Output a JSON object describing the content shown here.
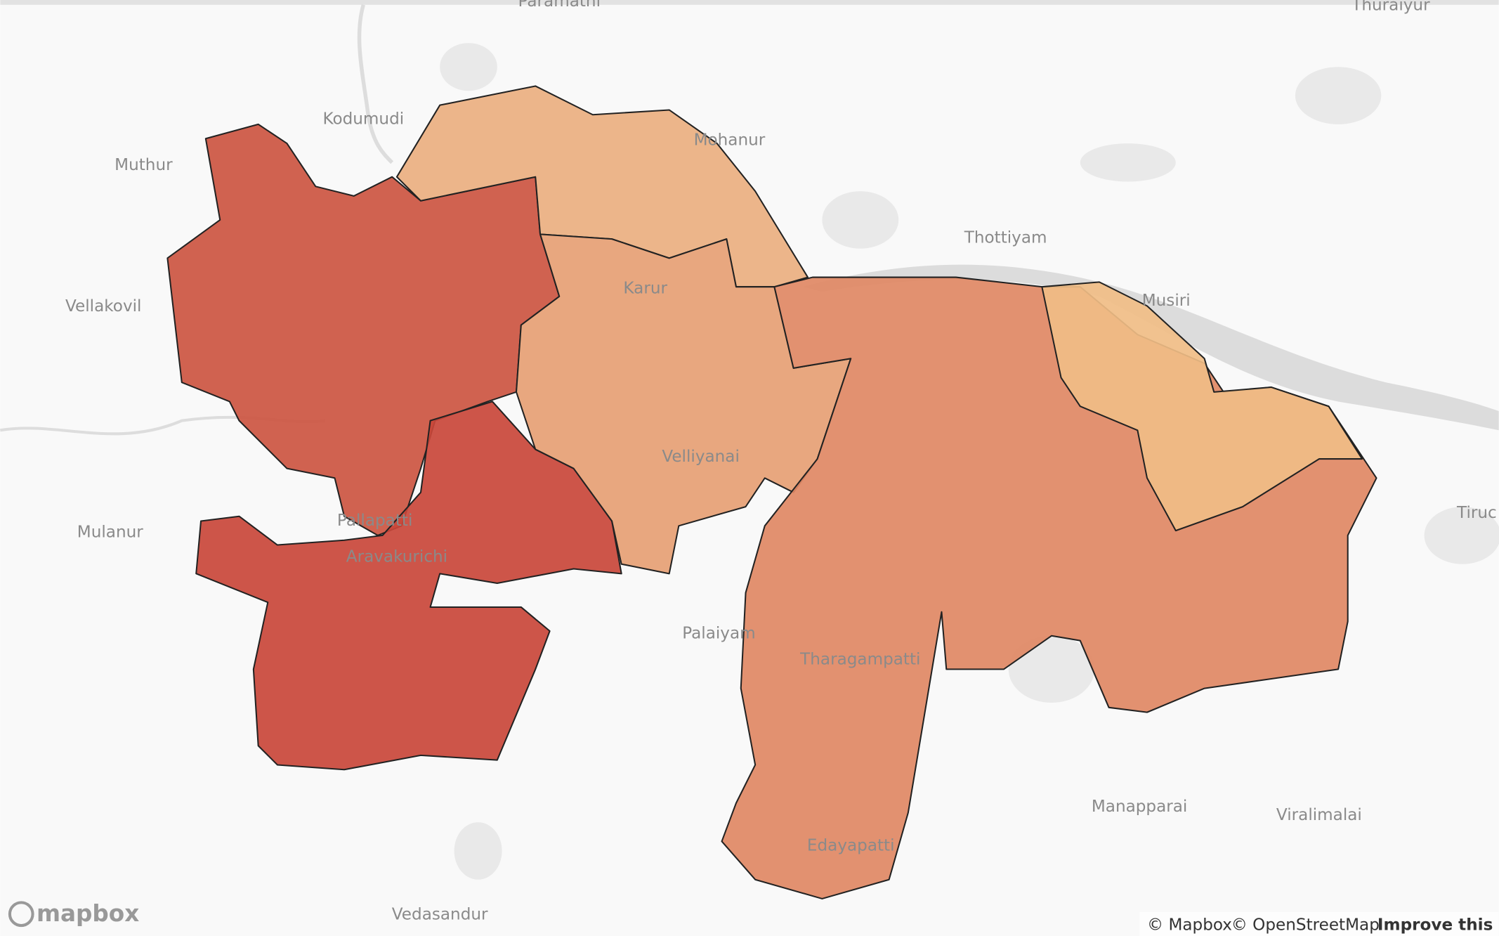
{
  "map": {
    "places": [
      "Paramathi",
      "Thuraiyur",
      "Kodumudi",
      "Muthur",
      "Mohanur",
      "Thottiyam",
      "Vellakovil",
      "Karur",
      "Musiri",
      "Velliyanai",
      "Mulanur",
      "Pallapatti",
      "Aravakurichi",
      "Palaiyam",
      "Tharagampatti",
      "Manapparai",
      "Viralimalai",
      "Edayapatti",
      "Vedasandur",
      "Tiruc"
    ],
    "logo": "mapbox",
    "attribution": {
      "mapbox": "© Mapbox",
      "osm": "© OpenStreetMap",
      "improve": "Improve this map"
    }
  }
}
